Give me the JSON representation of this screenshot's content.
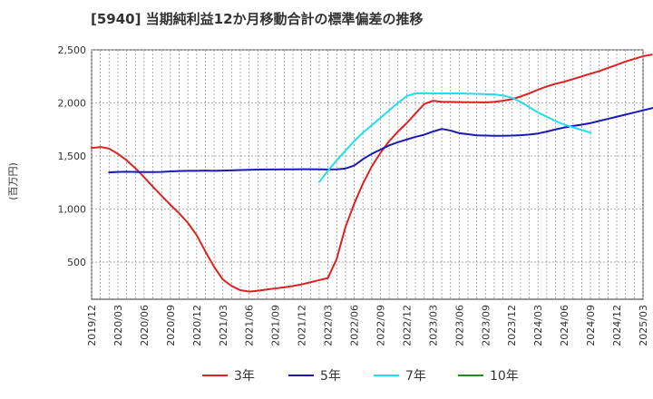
{
  "chart_data": {
    "type": "line",
    "title": "[5940]  当期純利益12か月移動合計の標準偏差の推移",
    "ylabel": "(百万円)",
    "xlabel": "",
    "ylim": [
      150,
      2500
    ],
    "yticks": [
      500,
      1000,
      1500,
      2000,
      2500
    ],
    "ytick_labels": [
      "500",
      "1,000",
      "1,500",
      "2,000",
      "2,500"
    ],
    "x_start": "2019-12",
    "x_end": "2025-03",
    "x_tick_labels": [
      "2019/12",
      "2020/03",
      "2020/06",
      "2020/09",
      "2020/12",
      "2021/03",
      "2021/06",
      "2021/09",
      "2021/12",
      "2022/03",
      "2022/06",
      "2022/09",
      "2022/12",
      "2023/03",
      "2023/06",
      "2023/09",
      "2023/12",
      "2024/03",
      "2024/06",
      "2024/09",
      "2024/12",
      "2025/03"
    ],
    "grid": true,
    "legend_position": "bottom",
    "series": [
      {
        "name": "3年",
        "color": "#dd2222",
        "start": "2019-12",
        "values": [
          1575,
          1585,
          1570,
          1520,
          1460,
          1385,
          1300,
          1210,
          1125,
          1040,
          960,
          870,
          755,
          600,
          455,
          335,
          275,
          235,
          222,
          230,
          242,
          252,
          262,
          275,
          290,
          310,
          330,
          350,
          530,
          830,
          1050,
          1240,
          1400,
          1530,
          1640,
          1730,
          1810,
          1900,
          1990,
          2020,
          2010,
          2010,
          2008,
          2007,
          2006,
          2005,
          2010,
          2020,
          2035,
          2060,
          2090,
          2125,
          2155,
          2180,
          2200,
          2225,
          2250,
          2275,
          2300,
          2330,
          2360,
          2390,
          2415,
          2440,
          2455
        ]
      },
      {
        "name": "5年",
        "color": "#1a1ab8",
        "start": "2020-02",
        "values": [
          1345,
          1350,
          1352,
          1350,
          1348,
          1348,
          1350,
          1355,
          1358,
          1360,
          1360,
          1362,
          1360,
          1362,
          1365,
          1368,
          1370,
          1372,
          1373,
          1373,
          1374,
          1374,
          1375,
          1375,
          1374,
          1373,
          1374,
          1382,
          1410,
          1470,
          1520,
          1560,
          1600,
          1630,
          1655,
          1680,
          1700,
          1730,
          1755,
          1740,
          1715,
          1705,
          1695,
          1692,
          1690,
          1690,
          1692,
          1696,
          1702,
          1712,
          1730,
          1750,
          1768,
          1783,
          1795,
          1810,
          1830,
          1850,
          1870,
          1890,
          1910,
          1930,
          1950,
          1970
        ]
      },
      {
        "name": "7年",
        "color": "#22ddee",
        "start": "2022-02",
        "values": [
          1255,
          1360,
          1460,
          1550,
          1640,
          1720,
          1790,
          1860,
          1930,
          2000,
          2065,
          2090,
          2092,
          2090,
          2090,
          2090,
          2090,
          2088,
          2085,
          2082,
          2080,
          2070,
          2050,
          2010,
          1960,
          1910,
          1870,
          1830,
          1795,
          1770,
          1745,
          1720
        ]
      },
      {
        "name": "10年",
        "color": "#228822",
        "start": "2025-03",
        "values": []
      }
    ]
  }
}
